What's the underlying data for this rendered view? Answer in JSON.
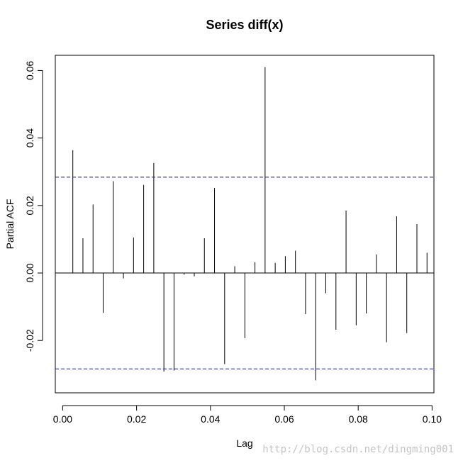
{
  "chart_data": {
    "type": "bar",
    "title": "Series  diff(x)",
    "xlabel": "Lag",
    "ylabel": "Partial ACF",
    "xlim": [
      -0.002,
      0.1005
    ],
    "ylim": [
      -0.0355,
      0.0645
    ],
    "xticks": [
      0.0,
      0.02,
      0.04,
      0.06,
      0.08,
      0.1
    ],
    "xtick_labels": [
      "0.00",
      "0.02",
      "0.04",
      "0.06",
      "0.08",
      "0.10"
    ],
    "yticks": [
      -0.02,
      0.0,
      0.02,
      0.04,
      0.06
    ],
    "ytick_labels": [
      "-0.02",
      "0.00",
      "0.02",
      "0.04",
      "0.06"
    ],
    "confidence_limit": 0.0284,
    "grid": false,
    "lags": [
      0.00274,
      0.00548,
      0.00822,
      0.01096,
      0.0137,
      0.01644,
      0.01918,
      0.02192,
      0.02466,
      0.0274,
      0.03014,
      0.03288,
      0.03562,
      0.03836,
      0.0411,
      0.04384,
      0.04658,
      0.04932,
      0.05205,
      0.05479,
      0.05753,
      0.06027,
      0.06301,
      0.06575,
      0.06849,
      0.07123,
      0.07397,
      0.07671,
      0.07945,
      0.08219,
      0.08493,
      0.08767,
      0.09041,
      0.09315,
      0.09589,
      0.09863
    ],
    "values": [
      0.0364,
      0.0103,
      0.0203,
      -0.0118,
      0.0272,
      -0.0016,
      0.0105,
      0.0261,
      0.0326,
      -0.0292,
      -0.0289,
      -0.0005,
      -0.001,
      0.0103,
      0.0252,
      -0.027,
      0.002,
      -0.0193,
      0.0032,
      0.061,
      0.003,
      0.005,
      0.0066,
      -0.0122,
      -0.0318,
      -0.006,
      -0.0168,
      0.0185,
      -0.0155,
      -0.012,
      0.0055,
      -0.0205,
      0.0168,
      -0.0178,
      0.0145,
      0.006
    ]
  },
  "watermark": "http://blog.csdn.net/dingming001"
}
